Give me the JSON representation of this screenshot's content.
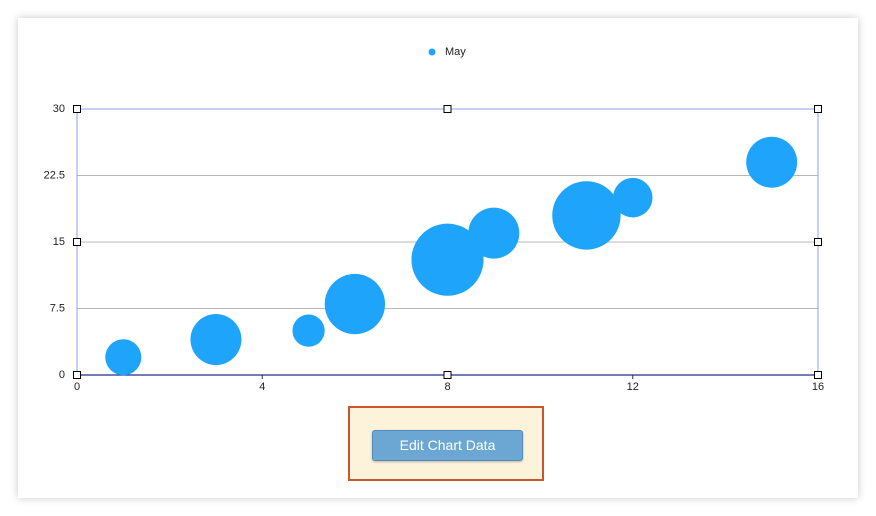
{
  "chart_data": {
    "type": "bubble",
    "series": [
      {
        "name": "May",
        "color": "#1ea4fb",
        "x": [
          1,
          3,
          5,
          6,
          8,
          9,
          11,
          12,
          15
        ],
        "values": [
          2,
          4,
          5,
          8,
          13,
          16,
          18,
          20,
          24
        ],
        "sizes": [
          2.5,
          5,
          2,
          7,
          10,
          5,
          9,
          3,
          5
        ]
      }
    ],
    "xlim": [
      0,
      16
    ],
    "xticks": [
      0,
      4,
      8,
      12,
      16
    ],
    "ylim": [
      0,
      30
    ],
    "yticks": [
      0,
      7.5,
      15,
      22.5,
      30
    ],
    "grid": true,
    "legend": "top"
  },
  "ui": {
    "button": "Edit Chart Data"
  }
}
